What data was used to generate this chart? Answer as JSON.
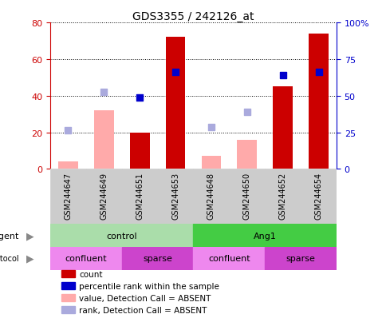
{
  "title": "GDS3355 / 242126_at",
  "samples": [
    "GSM244647",
    "GSM244649",
    "GSM244651",
    "GSM244653",
    "GSM244648",
    "GSM244650",
    "GSM244652",
    "GSM244654"
  ],
  "count_values": [
    null,
    null,
    20,
    72,
    null,
    null,
    45,
    74
  ],
  "count_absent": [
    4,
    32,
    null,
    null,
    7,
    16,
    null,
    null
  ],
  "percentile_rank": [
    null,
    null,
    39,
    53,
    null,
    null,
    51,
    53
  ],
  "percentile_absent": [
    21,
    42,
    null,
    null,
    23,
    31,
    null,
    null
  ],
  "ylim": [
    0,
    80
  ],
  "yticks": [
    0,
    20,
    40,
    60,
    80
  ],
  "y2lim": [
    0,
    100
  ],
  "y2ticks": [
    0,
    25,
    50,
    75,
    100
  ],
  "y2labels": [
    "0",
    "25",
    "50",
    "75",
    "100%"
  ],
  "bar_color_present": "#cc0000",
  "bar_color_absent": "#ffaaaa",
  "dot_color_present": "#0000cc",
  "dot_color_absent": "#aaaadd",
  "sample_bg_color": "#cccccc",
  "agent_groups": [
    {
      "label": "control",
      "start": 0,
      "end": 3,
      "color": "#aaddaa"
    },
    {
      "label": "Ang1",
      "start": 4,
      "end": 7,
      "color": "#44cc44"
    }
  ],
  "growth_groups": [
    {
      "label": "confluent",
      "start": 0,
      "end": 1,
      "color": "#ee88ee"
    },
    {
      "label": "sparse",
      "start": 2,
      "end": 3,
      "color": "#cc44cc"
    },
    {
      "label": "confluent",
      "start": 4,
      "end": 5,
      "color": "#ee88ee"
    },
    {
      "label": "sparse",
      "start": 6,
      "end": 7,
      "color": "#cc44cc"
    }
  ],
  "legend_items": [
    {
      "label": "count",
      "color": "#cc0000"
    },
    {
      "label": "percentile rank within the sample",
      "color": "#0000cc"
    },
    {
      "label": "value, Detection Call = ABSENT",
      "color": "#ffaaaa"
    },
    {
      "label": "rank, Detection Call = ABSENT",
      "color": "#aaaadd"
    }
  ],
  "tick_color_left": "#cc0000",
  "tick_color_right": "#0000cc",
  "bg_color": "#ffffff"
}
